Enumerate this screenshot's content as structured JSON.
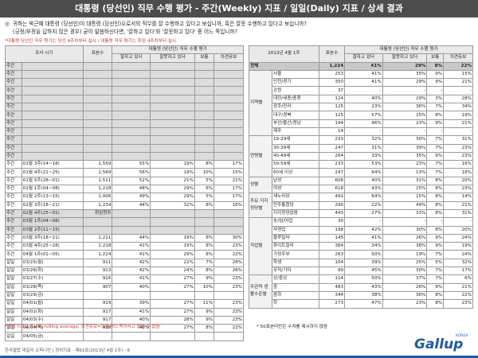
{
  "header": {
    "title": "대통령 (당선인) 직무 수행 평가 - 주간(Weekly) 지표 / 일일(Daily) 지표 / 상세 결과"
  },
  "question": {
    "bullet": "◎",
    "line1": "귀하는 박근혜 대통령 (당선인)이 대통령 (당선인)으로서의 직무를 잘 수행하고 있다고 보십니까, 혹은 잘못 수행하고 있다고 보십니까?",
    "line2": "(긍정/부정을 답하지 않은 경우) 굳이 말씀하신다면, '잘하고 있다'와 '잘못하고 있다' 중 어느 쪽입니까?"
  },
  "note_top": "*대통령 당선인 직무 평가는 당선 4주차부터 실시 / 대통령 직무 평가는 취임 4주차부터 실시",
  "left_table": {
    "col_period": "조사 시기",
    "col_n": "표본수",
    "col_group": "대통령 (당선인) 직무 수행 평가",
    "cols": [
      "잘하고 있다",
      "잘못하고 있다",
      "보통",
      "의견유보"
    ],
    "rows": [
      {
        "c1": "주간",
        "c2": "",
        "n": "",
        "v": [
          "",
          "",
          "",
          ""
        ],
        "s": "g"
      },
      {
        "c1": "주간",
        "c2": "",
        "n": "",
        "v": [
          "",
          "",
          "",
          ""
        ],
        "s": "g"
      },
      {
        "c1": "주간",
        "c2": "",
        "n": "",
        "v": [
          "",
          "",
          "",
          ""
        ],
        "s": "g"
      },
      {
        "c1": "주간",
        "c2": "",
        "n": "",
        "v": [
          "",
          "",
          "",
          ""
        ],
        "s": "g"
      },
      {
        "c1": "주간",
        "c2": "",
        "n": "",
        "v": [
          "",
          "",
          "",
          ""
        ],
        "s": "g"
      },
      {
        "c1": "주간",
        "c2": "",
        "n": "",
        "v": [
          "",
          "",
          "",
          ""
        ],
        "s": "g"
      },
      {
        "c1": "주간",
        "c2": "",
        "n": "",
        "v": [
          "",
          "",
          "",
          ""
        ],
        "s": "g"
      },
      {
        "c1": "주간",
        "c2": "",
        "n": "",
        "v": [
          "",
          "",
          "",
          ""
        ],
        "s": "g"
      },
      {
        "c1": "주간",
        "c2": "",
        "n": "",
        "v": [
          "",
          "",
          "",
          ""
        ],
        "s": "g"
      },
      {
        "c1": "주간",
        "c2": "",
        "n": "",
        "v": [
          "",
          "",
          "",
          ""
        ],
        "s": "g"
      },
      {
        "c1": "주간",
        "c2": "",
        "n": "",
        "v": [
          "",
          "",
          "",
          ""
        ],
        "s": "g"
      },
      {
        "c1": "주간",
        "c2": "",
        "n": "",
        "v": [
          "",
          "",
          "",
          ""
        ],
        "s": "g"
      },
      {
        "c1": "주간",
        "c2": "01월 3주(14~18)",
        "n": "1,559",
        "v": [
          "55%",
          "19%",
          "8%",
          "17%"
        ],
        "s": "white"
      },
      {
        "c1": "주간",
        "c2": "01월 4주(21~25)",
        "n": "1,569",
        "v": [
          "56%",
          "19%",
          "10%",
          "15%"
        ],
        "s": "white"
      },
      {
        "c1": "주간",
        "c2": "01월 5주(28~01)",
        "n": "1,511",
        "v": [
          "52%",
          "21%",
          "5%",
          "21%"
        ],
        "s": "white"
      },
      {
        "c1": "주간",
        "c2": "02월 1주(04~08)",
        "n": "1,218",
        "v": [
          "48%",
          "29%",
          "6%",
          "17%"
        ],
        "s": "white"
      },
      {
        "c1": "주간",
        "c2": "02월 2주(13~15)",
        "n": "1,006",
        "v": [
          "49%",
          "29%",
          "5%",
          "17%"
        ],
        "s": "white"
      },
      {
        "c1": "주간",
        "c2": "02월 3주(18~21)",
        "n": "1,234",
        "v": [
          "44%",
          "32%",
          "8%",
          "16%"
        ],
        "s": "white"
      },
      {
        "c1": "주간",
        "c2": "02월 4주(25~01)",
        "n": "취임첫주",
        "v": [
          "",
          "",
          "",
          ""
        ],
        "s": "g"
      },
      {
        "c1": "주간",
        "c2": "03월 1주(04~08)",
        "n": "",
        "v": [
          "",
          "",
          "",
          ""
        ],
        "s": "g"
      },
      {
        "c1": "주간",
        "c2": "03월 2주(11~15)",
        "n": "",
        "v": [
          "",
          "",
          "",
          ""
        ],
        "s": "g"
      },
      {
        "c1": "주간",
        "c2": "03월 3주(18~21)",
        "n": "1,211",
        "v": [
          "44%",
          "19%",
          "8%",
          "30%"
        ],
        "s": "white"
      },
      {
        "c1": "주간",
        "c2": "03월 4주(25~28)",
        "n": "1,218",
        "v": [
          "41%",
          "19%",
          "8%",
          "23%"
        ],
        "s": "white"
      },
      {
        "c1": "주간",
        "c2": "04월 1주(01~05)",
        "n": "1,224",
        "v": [
          "41%",
          "29%",
          "8%",
          "22%"
        ],
        "s": "white"
      },
      {
        "c1": "일일",
        "c2": "03/25(월)",
        "n": "911",
        "v": [
          "42%",
          "22%",
          "7%",
          "28%"
        ],
        "s": "white"
      },
      {
        "c1": "일일",
        "c2": "03/26(화)",
        "n": "913",
        "v": [
          "42%",
          "24%",
          "8%",
          "26%"
        ],
        "s": "white"
      },
      {
        "c1": "일일",
        "c2": "03/27(수)",
        "n": "916",
        "v": [
          "41%",
          "27%",
          "9%",
          "23%"
        ],
        "s": "white"
      },
      {
        "c1": "일일",
        "c2": "03/28(목)",
        "n": "907",
        "v": [
          "40%",
          "27%",
          "10%",
          "23%"
        ],
        "s": "white"
      },
      {
        "c1": "일일",
        "c2": "03/29(금)",
        "n": "",
        "v": [
          "",
          "",
          "",
          ""
        ],
        "s": "white"
      },
      {
        "c1": "일일",
        "c2": "04/01(월)",
        "n": "919",
        "v": [
          "39%",
          "27%",
          "11%",
          "23%"
        ],
        "s": "white"
      },
      {
        "c1": "일일",
        "c2": "04/01(화)",
        "n": "917",
        "v": [
          "41%",
          "27%",
          "9%",
          "23%"
        ],
        "s": "white"
      },
      {
        "c1": "일일",
        "c2": "04/03(수)",
        "n": "917",
        "v": [
          "40%",
          "28%",
          "9%",
          "23%"
        ],
        "s": "white"
      },
      {
        "c1": "일일",
        "c2": "04/04(목)",
        "n": "910",
        "v": [
          "40%",
          "27%",
          "8%",
          "22%"
        ],
        "s": "white"
      },
      {
        "c1": "일일",
        "c2": "04/05(금)",
        "n": "",
        "v": [
          "",
          "",
          "",
          ""
        ],
        "s": "white"
      }
    ]
  },
  "note_bottom": "*일일 지표는 3-day-rolling average, 의견유보=모름/어느쪽이라고 할할 수 없음",
  "right_table": {
    "col_date": "2013년 4월 1주",
    "col_n": "표본수",
    "col_group": "대통령 (당선인) 직무 수행 평가",
    "cols": [
      "잘하고 있다",
      "잘못하고 있다",
      "보통",
      "의견유보"
    ],
    "total": {
      "label": "전체",
      "n": "1,224",
      "v": [
        "41%",
        "29%",
        "8%",
        "22%"
      ]
    },
    "groups": [
      {
        "name": "지역별",
        "rows": [
          {
            "l": "서울",
            "n": "253",
            "v": [
              "41%",
              "35%",
              "9%",
              "15%"
            ]
          },
          {
            "l": "인천/경기",
            "n": "350",
            "v": [
              "41%",
              "29%",
              "9%",
              "21%"
            ]
          },
          {
            "l": "강원",
            "n": "37",
            "v": [
              "-",
              "-",
              "-",
              "-"
            ]
          },
          {
            "l": "대전/세종/충청",
            "n": "124",
            "v": [
              "40%",
              "29%",
              "3%",
              "28%"
            ]
          },
          {
            "l": "광주/전라",
            "n": "125",
            "v": [
              "23%",
              "36%",
              "7%",
              "34%"
            ]
          },
          {
            "l": "대구/경북",
            "n": "125",
            "v": [
              "57%",
              "15%",
              "8%",
              "19%"
            ]
          },
          {
            "l": "부산/울산/경남",
            "n": "194",
            "v": [
              "46%",
              "23%",
              "9%",
              "21%"
            ]
          },
          {
            "l": "제주",
            "n": "14",
            "v": [
              "-",
              "-",
              "-",
              "-"
            ]
          }
        ]
      },
      {
        "name": "연령별",
        "rows": [
          {
            "l": "19-29세",
            "n": "233",
            "v": [
              "32%",
              "30%",
              "7%",
              "31%"
            ]
          },
          {
            "l": "30-39세",
            "n": "247",
            "v": [
              "31%",
              "39%",
              "7%",
              "23%"
            ]
          },
          {
            "l": "40-49세",
            "n": "264",
            "v": [
              "33%",
              "35%",
              "9%",
              "23%"
            ]
          },
          {
            "l": "50-59세",
            "n": "233",
            "v": [
              "53%",
              "23%",
              "7%",
              "16%"
            ]
          },
          {
            "l": "60세 이상",
            "n": "247",
            "v": [
              "64%",
              "13%",
              "7%",
              "16%"
            ]
          }
        ]
      },
      {
        "name": "성별",
        "rows": [
          {
            "l": "남성",
            "n": "606",
            "v": [
              "40%",
              "31%",
              "8%",
              "20%"
            ]
          },
          {
            "l": "여성",
            "n": "618",
            "v": [
              "43%",
              "25%",
              "8%",
              "23%"
            ]
          }
        ]
      },
      {
        "name": "주요 지지 정당별",
        "rows": [
          {
            "l": "새누리당",
            "n": "491",
            "v": [
              "64%",
              "15%",
              "8%",
              "14%"
            ]
          },
          {
            "l": "민주통합당",
            "n": "290",
            "v": [
              "22%",
              "49%",
              "8%",
              "21%"
            ]
          },
          {
            "l": "지지정당없음",
            "n": "443",
            "v": [
              "27%",
              "33%",
              "8%",
              "31%"
            ]
          }
        ]
      },
      {
        "name": "직업별",
        "rows": [
          {
            "l": "농/임/어업",
            "n": "30",
            "v": [
              "-",
              "-",
              "-",
              "-"
            ]
          },
          {
            "l": "자영업",
            "n": "198",
            "v": [
              "42%",
              "30%",
              "8%",
              "20%"
            ]
          },
          {
            "l": "블루칼라",
            "n": "145",
            "v": [
              "41%",
              "26%",
              "9%",
              "24%"
            ]
          },
          {
            "l": "화이트칼라",
            "n": "384",
            "v": [
              "34%",
              "38%",
              "9%",
              "19%"
            ]
          },
          {
            "l": "가정주부",
            "n": "263",
            "v": [
              "50%",
              "19%",
              "7%",
              "24%"
            ]
          },
          {
            "l": "학생",
            "n": "104",
            "v": [
              "39%",
              "25%",
              "5%",
              "32%"
            ]
          },
          {
            "l": "무직/기타",
            "n": "99",
            "v": [
              "45%",
              "30%",
              "7%",
              "17%"
            ]
          }
        ]
      },
      {
        "name": "주관적 생활수준별",
        "rows": [
          {
            "l": "상/중상",
            "n": "114",
            "v": [
              "50%",
              "37%",
              "7%",
              "6%"
            ]
          },
          {
            "l": "중",
            "n": "483",
            "v": [
              "43%",
              "26%",
              "9%",
              "21%"
            ]
          },
          {
            "l": "중하",
            "n": "344",
            "v": [
              "38%",
              "36%",
              "8%",
              "22%"
            ]
          },
          {
            "l": "하",
            "n": "273",
            "v": [
              "47%",
              "23%",
              "8%",
              "23%"
            ]
          }
        ]
      }
    ]
  },
  "note_right": "* 50표본미만은 수치를 제시하지 않음",
  "footer": "한국갤럽 데일리 오피니언 | 정치지표 - 제61호(2013년 4월 1주) - 6",
  "logo": {
    "text": "Gallup",
    "kor": "KOREA",
    "color": "#1d5aa6"
  }
}
